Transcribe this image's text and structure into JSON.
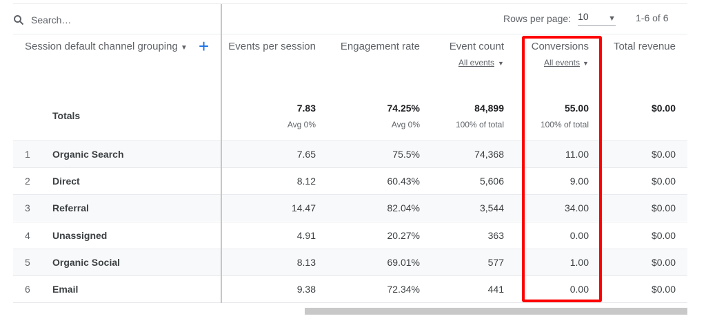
{
  "toolbar": {
    "search_placeholder": "Search…",
    "rows_per_page_label": "Rows per page:",
    "rows_per_page_value": "10",
    "pagination": "1-6 of 6"
  },
  "dimension_header": "Session default channel grouping",
  "columns": [
    {
      "label": "Events per session",
      "sub": ""
    },
    {
      "label": "Engagement rate",
      "sub": ""
    },
    {
      "label": "Event count",
      "sub": "All events"
    },
    {
      "label": "Conversions",
      "sub": "All events"
    },
    {
      "label": "Total revenue",
      "sub": ""
    }
  ],
  "totals": {
    "label": "Totals",
    "values": [
      "7.83",
      "74.25%",
      "84,899",
      "55.00",
      "$0.00"
    ],
    "subs": [
      "Avg 0%",
      "Avg 0%",
      "100% of total",
      "100% of total",
      ""
    ]
  },
  "rows": [
    {
      "n": "1",
      "name": "Organic Search",
      "v": [
        "7.65",
        "75.5%",
        "74,368",
        "11.00",
        "$0.00"
      ]
    },
    {
      "n": "2",
      "name": "Direct",
      "v": [
        "8.12",
        "60.43%",
        "5,606",
        "9.00",
        "$0.00"
      ]
    },
    {
      "n": "3",
      "name": "Referral",
      "v": [
        "14.47",
        "82.04%",
        "3,544",
        "34.00",
        "$0.00"
      ]
    },
    {
      "n": "4",
      "name": "Unassigned",
      "v": [
        "4.91",
        "20.27%",
        "363",
        "0.00",
        "$0.00"
      ]
    },
    {
      "n": "5",
      "name": "Organic Social",
      "v": [
        "8.13",
        "69.01%",
        "577",
        "1.00",
        "$0.00"
      ]
    },
    {
      "n": "6",
      "name": "Email",
      "v": [
        "9.38",
        "72.34%",
        "441",
        "0.00",
        "$0.00"
      ]
    }
  ],
  "colors": {
    "highlight": "#ff0000",
    "accent": "#1a73e8"
  }
}
